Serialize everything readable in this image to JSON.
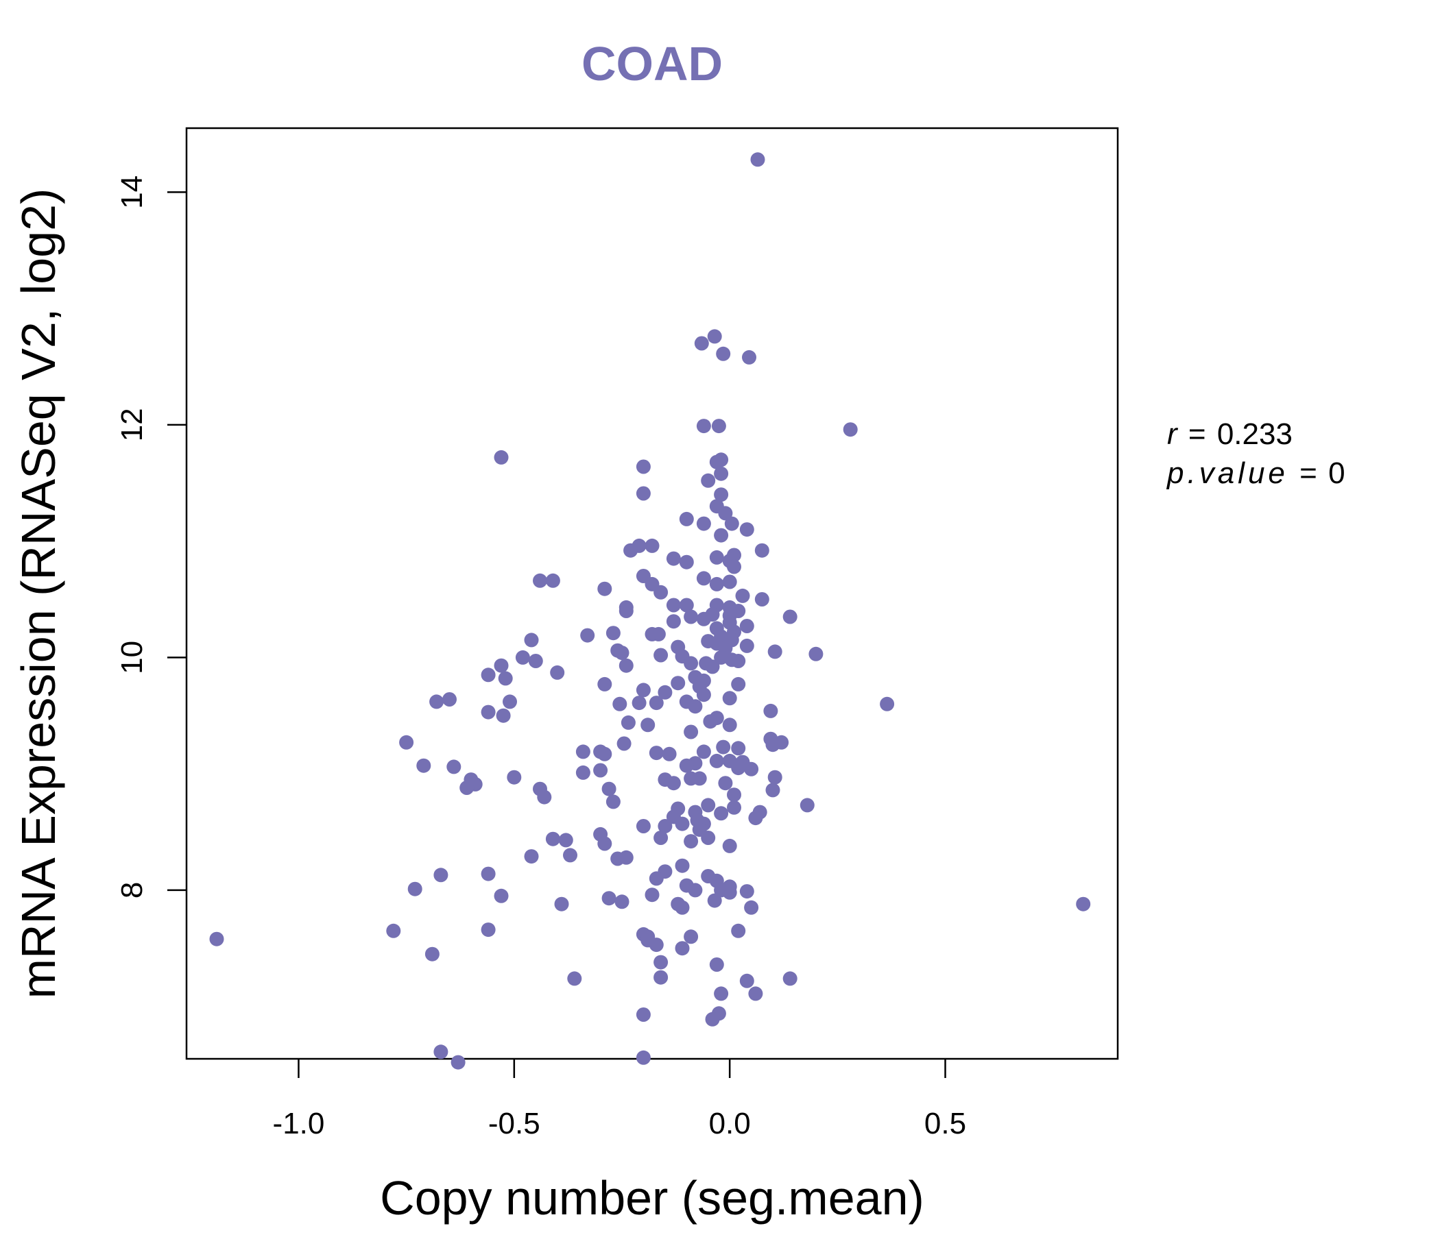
{
  "colors": {
    "accent": "#7570b3",
    "axis": "#000000",
    "background": "#ffffff"
  },
  "chart_data": {
    "type": "scatter",
    "title": "COAD",
    "xlabel": "Copy number (seg.mean)",
    "ylabel": "mRNA Expression (RNASeq V2, log2)",
    "xlim": [
      -1.26,
      0.9
    ],
    "ylim": [
      6.55,
      14.55
    ],
    "xticks": [
      -1.0,
      -0.5,
      0.0,
      0.5
    ],
    "xtick_labels": [
      "-1.0",
      "-0.5",
      "0.0",
      "0.5"
    ],
    "yticks": [
      8,
      10,
      12,
      14
    ],
    "ytick_labels": [
      "8",
      "10",
      "12",
      "14"
    ],
    "grid": false,
    "legend": "none",
    "annotation": {
      "r_label": "r",
      "r_value": "0.233",
      "p_label": "p.value",
      "p_value": "0"
    },
    "points": [
      [
        0.065,
        14.28
      ],
      [
        -0.035,
        12.76
      ],
      [
        -0.065,
        12.7
      ],
      [
        -0.015,
        12.61
      ],
      [
        0.045,
        12.58
      ],
      [
        -0.06,
        11.99
      ],
      [
        -0.025,
        11.99
      ],
      [
        0.28,
        11.96
      ],
      [
        -0.53,
        11.72
      ],
      [
        -0.02,
        11.7
      ],
      [
        -0.03,
        11.68
      ],
      [
        -0.2,
        11.64
      ],
      [
        -0.02,
        11.58
      ],
      [
        -0.05,
        11.52
      ],
      [
        -0.2,
        11.41
      ],
      [
        -0.02,
        11.4
      ],
      [
        -0.03,
        11.3
      ],
      [
        -0.01,
        11.24
      ],
      [
        -0.1,
        11.19
      ],
      [
        -0.06,
        11.15
      ],
      [
        0.005,
        11.15
      ],
      [
        0.04,
        11.1
      ],
      [
        -0.02,
        11.05
      ],
      [
        -0.18,
        10.96
      ],
      [
        -0.21,
        10.96
      ],
      [
        -0.23,
        10.92
      ],
      [
        0.075,
        10.92
      ],
      [
        0.01,
        10.88
      ],
      [
        -0.03,
        10.86
      ],
      [
        -0.13,
        10.85
      ],
      [
        0.0,
        10.83
      ],
      [
        -0.1,
        10.82
      ],
      [
        0.01,
        10.78
      ],
      [
        -0.2,
        10.7
      ],
      [
        -0.06,
        10.68
      ],
      [
        -0.44,
        10.66
      ],
      [
        -0.41,
        10.66
      ],
      [
        -0.18,
        10.63
      ],
      [
        0.0,
        10.65
      ],
      [
        -0.03,
        10.63
      ],
      [
        -0.29,
        10.59
      ],
      [
        -0.16,
        10.56
      ],
      [
        0.03,
        10.53
      ],
      [
        0.075,
        10.5
      ],
      [
        -0.13,
        10.45
      ],
      [
        -0.1,
        10.45
      ],
      [
        -0.03,
        10.45
      ],
      [
        0.0,
        10.43
      ],
      [
        0.02,
        10.4
      ],
      [
        -0.24,
        10.43
      ],
      [
        -0.24,
        10.4
      ],
      [
        -0.04,
        10.37
      ],
      [
        0.0,
        10.36
      ],
      [
        -0.09,
        10.35
      ],
      [
        -0.06,
        10.33
      ],
      [
        0.14,
        10.35
      ],
      [
        -0.13,
        10.31
      ],
      [
        0.0,
        10.3
      ],
      [
        0.04,
        10.27
      ],
      [
        -0.03,
        10.25
      ],
      [
        0.01,
        10.22
      ],
      [
        -0.27,
        10.21
      ],
      [
        -0.33,
        10.19
      ],
      [
        -0.18,
        10.2
      ],
      [
        -0.165,
        10.2
      ],
      [
        -0.02,
        10.18
      ],
      [
        0.005,
        10.15
      ],
      [
        -0.05,
        10.14
      ],
      [
        -0.46,
        10.15
      ],
      [
        -0.03,
        10.12
      ],
      [
        0.04,
        10.1
      ],
      [
        -0.12,
        10.09
      ],
      [
        -0.01,
        10.08
      ],
      [
        -0.26,
        10.06
      ],
      [
        -0.25,
        10.04
      ],
      [
        0.105,
        10.05
      ],
      [
        -0.16,
        10.02
      ],
      [
        -0.11,
        10.01
      ],
      [
        0.2,
        10.03
      ],
      [
        -0.48,
        10.0
      ],
      [
        -0.02,
        10.0
      ],
      [
        0.005,
        9.98
      ],
      [
        -0.45,
        9.97
      ],
      [
        0.02,
        9.97
      ],
      [
        -0.09,
        9.95
      ],
      [
        -0.055,
        9.95
      ],
      [
        -0.24,
        9.93
      ],
      [
        -0.53,
        9.93
      ],
      [
        -0.04,
        9.92
      ],
      [
        -0.4,
        9.87
      ],
      [
        -0.56,
        9.85
      ],
      [
        -0.08,
        9.83
      ],
      [
        -0.52,
        9.82
      ],
      [
        -0.06,
        9.8
      ],
      [
        -0.12,
        9.78
      ],
      [
        -0.29,
        9.77
      ],
      [
        0.02,
        9.77
      ],
      [
        -0.07,
        9.75
      ],
      [
        -0.2,
        9.72
      ],
      [
        -0.15,
        9.7
      ],
      [
        -0.06,
        9.68
      ],
      [
        0.0,
        9.65
      ],
      [
        -0.65,
        9.64
      ],
      [
        -0.68,
        9.62
      ],
      [
        -0.51,
        9.62
      ],
      [
        -0.1,
        9.62
      ],
      [
        -0.17,
        9.61
      ],
      [
        -0.21,
        9.61
      ],
      [
        -0.255,
        9.6
      ],
      [
        0.365,
        9.6
      ],
      [
        -0.08,
        9.58
      ],
      [
        0.095,
        9.54
      ],
      [
        -0.56,
        9.53
      ],
      [
        -0.525,
        9.5
      ],
      [
        -0.03,
        9.48
      ],
      [
        -0.045,
        9.45
      ],
      [
        -0.235,
        9.44
      ],
      [
        -0.19,
        9.42
      ],
      [
        0.0,
        9.42
      ],
      [
        -0.09,
        9.36
      ],
      [
        0.095,
        9.3
      ],
      [
        -0.75,
        9.27
      ],
      [
        -0.245,
        9.26
      ],
      [
        0.12,
        9.27
      ],
      [
        0.1,
        9.25
      ],
      [
        -0.015,
        9.23
      ],
      [
        0.02,
        9.22
      ],
      [
        -0.06,
        9.19
      ],
      [
        -0.34,
        9.19
      ],
      [
        -0.3,
        9.19
      ],
      [
        -0.29,
        9.17
      ],
      [
        -0.17,
        9.18
      ],
      [
        -0.14,
        9.17
      ],
      [
        -0.03,
        9.11
      ],
      [
        0.0,
        9.11
      ],
      [
        0.03,
        9.1
      ],
      [
        -0.08,
        9.09
      ],
      [
        -0.1,
        9.07
      ],
      [
        -0.71,
        9.07
      ],
      [
        -0.64,
        9.06
      ],
      [
        0.02,
        9.05
      ],
      [
        0.05,
        9.04
      ],
      [
        -0.3,
        9.03
      ],
      [
        -0.34,
        9.01
      ],
      [
        -0.5,
        8.97
      ],
      [
        0.105,
        8.97
      ],
      [
        -0.6,
        8.95
      ],
      [
        -0.07,
        8.96
      ],
      [
        -0.15,
        8.95
      ],
      [
        -0.09,
        8.96
      ],
      [
        -0.59,
        8.91
      ],
      [
        -0.13,
        8.92
      ],
      [
        -0.01,
        8.92
      ],
      [
        -0.61,
        8.88
      ],
      [
        0.1,
        8.86
      ],
      [
        -0.28,
        8.87
      ],
      [
        -0.44,
        8.87
      ],
      [
        0.01,
        8.82
      ],
      [
        -0.43,
        8.8
      ],
      [
        -0.27,
        8.76
      ],
      [
        0.18,
        8.73
      ],
      [
        -0.05,
        8.73
      ],
      [
        0.01,
        8.71
      ],
      [
        -0.12,
        8.7
      ],
      [
        -0.08,
        8.67
      ],
      [
        -0.02,
        8.66
      ],
      [
        0.07,
        8.67
      ],
      [
        0.06,
        8.62
      ],
      [
        -0.13,
        8.63
      ],
      [
        -0.075,
        8.6
      ],
      [
        -0.06,
        8.57
      ],
      [
        -0.11,
        8.57
      ],
      [
        -0.2,
        8.55
      ],
      [
        -0.15,
        8.55
      ],
      [
        -0.07,
        8.52
      ],
      [
        -0.3,
        8.48
      ],
      [
        -0.16,
        8.45
      ],
      [
        -0.05,
        8.45
      ],
      [
        -0.41,
        8.44
      ],
      [
        -0.38,
        8.43
      ],
      [
        -0.09,
        8.42
      ],
      [
        -0.29,
        8.4
      ],
      [
        0.0,
        8.38
      ],
      [
        -0.37,
        8.3
      ],
      [
        -0.46,
        8.29
      ],
      [
        -0.26,
        8.27
      ],
      [
        -0.24,
        8.28
      ],
      [
        -0.11,
        8.21
      ],
      [
        -0.15,
        8.16
      ],
      [
        -0.17,
        8.1
      ],
      [
        -0.56,
        8.14
      ],
      [
        -0.67,
        8.13
      ],
      [
        -0.05,
        8.12
      ],
      [
        -0.03,
        8.08
      ],
      [
        -0.1,
        8.04
      ],
      [
        0.0,
        8.03
      ],
      [
        -0.73,
        8.01
      ],
      [
        -0.08,
        8.0
      ],
      [
        -0.02,
        8.0
      ],
      [
        0.04,
        7.99
      ],
      [
        0.0,
        7.98
      ],
      [
        -0.18,
        7.96
      ],
      [
        -0.53,
        7.95
      ],
      [
        -0.28,
        7.93
      ],
      [
        -0.035,
        7.91
      ],
      [
        -0.25,
        7.9
      ],
      [
        -0.39,
        7.88
      ],
      [
        -0.12,
        7.88
      ],
      [
        0.82,
        7.88
      ],
      [
        -0.11,
        7.85
      ],
      [
        0.05,
        7.85
      ],
      [
        -0.56,
        7.66
      ],
      [
        -0.78,
        7.65
      ],
      [
        0.02,
        7.65
      ],
      [
        -0.2,
        7.62
      ],
      [
        -0.19,
        7.6
      ],
      [
        -1.19,
        7.58
      ],
      [
        -0.09,
        7.6
      ],
      [
        -0.19,
        7.57
      ],
      [
        -0.17,
        7.53
      ],
      [
        -0.11,
        7.5
      ],
      [
        -0.69,
        7.45
      ],
      [
        -0.16,
        7.38
      ],
      [
        -0.03,
        7.36
      ],
      [
        -0.16,
        7.25
      ],
      [
        -0.36,
        7.24
      ],
      [
        0.14,
        7.24
      ],
      [
        0.04,
        7.22
      ],
      [
        -0.02,
        7.11
      ],
      [
        0.06,
        7.11
      ],
      [
        -0.2,
        6.93
      ],
      [
        -0.025,
        6.94
      ],
      [
        -0.04,
        6.89
      ],
      [
        -0.67,
        6.61
      ],
      [
        -0.2,
        6.56
      ],
      [
        -0.63,
        6.52
      ]
    ]
  }
}
